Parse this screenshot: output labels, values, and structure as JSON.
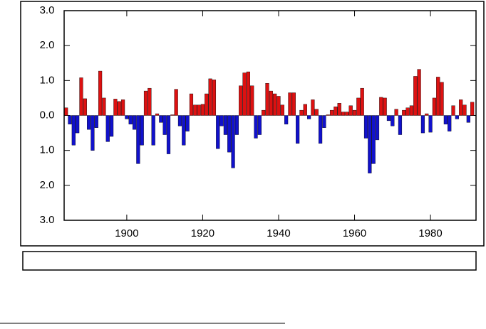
{
  "chart_data": {
    "type": "bar",
    "x": [
      1884,
      1885,
      1886,
      1887,
      1888,
      1889,
      1890,
      1891,
      1892,
      1893,
      1894,
      1895,
      1896,
      1897,
      1898,
      1899,
      1900,
      1901,
      1902,
      1903,
      1904,
      1905,
      1906,
      1907,
      1908,
      1909,
      1910,
      1911,
      1912,
      1913,
      1914,
      1915,
      1916,
      1917,
      1918,
      1919,
      1920,
      1921,
      1922,
      1923,
      1924,
      1925,
      1926,
      1927,
      1928,
      1929,
      1930,
      1931,
      1932,
      1933,
      1934,
      1935,
      1936,
      1937,
      1938,
      1939,
      1940,
      1941,
      1942,
      1943,
      1944,
      1945,
      1946,
      1947,
      1948,
      1949,
      1950,
      1951,
      1952,
      1953,
      1954,
      1955,
      1956,
      1957,
      1958,
      1959,
      1960,
      1961,
      1962,
      1963,
      1964,
      1965,
      1966,
      1967,
      1968,
      1969,
      1970,
      1971,
      1972,
      1973,
      1974,
      1975,
      1976,
      1977,
      1978,
      1979,
      1980,
      1981,
      1982,
      1983,
      1984,
      1985,
      1986,
      1987,
      1988,
      1989,
      1990,
      1991
    ],
    "values": [
      0.22,
      -0.25,
      -0.85,
      -0.5,
      1.08,
      0.48,
      -0.4,
      -1.0,
      -0.35,
      1.27,
      0.5,
      -0.75,
      -0.6,
      0.47,
      0.4,
      0.45,
      -0.1,
      -0.25,
      -0.4,
      -1.38,
      -0.85,
      0.7,
      0.78,
      -0.85,
      0.05,
      -0.2,
      -0.55,
      -1.1,
      0.02,
      0.75,
      -0.3,
      -0.85,
      -0.45,
      0.62,
      0.3,
      0.3,
      0.32,
      0.62,
      1.05,
      1.02,
      -0.95,
      -0.3,
      -0.55,
      -1.05,
      -1.5,
      -0.55,
      0.85,
      1.22,
      1.25,
      0.85,
      -0.65,
      -0.55,
      0.15,
      0.92,
      0.7,
      0.62,
      0.55,
      0.3,
      -0.25,
      0.65,
      0.65,
      -0.8,
      0.15,
      0.32,
      -0.1,
      0.45,
      0.18,
      -0.8,
      -0.35,
      0.02,
      0.15,
      0.25,
      0.35,
      0.1,
      0.1,
      0.28,
      0.15,
      0.5,
      0.78,
      -0.65,
      -1.65,
      -1.38,
      -0.7,
      0.52,
      0.5,
      -0.15,
      -0.3,
      0.18,
      -0.55,
      0.15,
      0.22,
      0.28,
      1.12,
      1.32,
      -0.5,
      0.05,
      -0.48,
      0.5,
      1.1,
      0.95,
      -0.25,
      -0.45,
      0.28,
      -0.1,
      0.45,
      0.3,
      -0.2,
      0.38
    ],
    "pos_color": "#dd1111",
    "neg_color": "#1111cc",
    "xlim": [
      1883.5,
      1992
    ],
    "xticks": [
      1900,
      1920,
      1940,
      1960,
      1980
    ],
    "ylim": [
      -3,
      3
    ],
    "yticks": [
      {
        "value": 3,
        "label": "3.0"
      },
      {
        "value": 2,
        "label": "2.0"
      },
      {
        "value": 1,
        "label": "1.0"
      },
      {
        "value": 0,
        "label": "0.0"
      },
      {
        "value": -1,
        "label": "1.0"
      },
      {
        "value": -2,
        "label": "2.0"
      },
      {
        "value": -3,
        "label": "3.0"
      }
    ]
  }
}
